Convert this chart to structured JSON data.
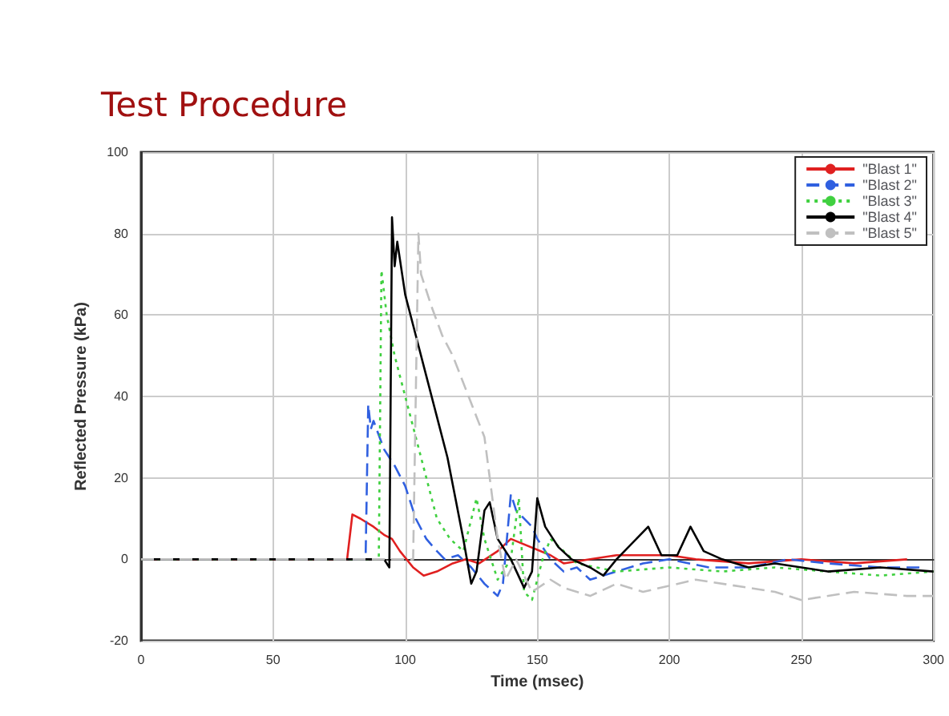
{
  "chart_data": {
    "type": "line",
    "title": "Test Procedure",
    "xlabel": "Time (msec)",
    "ylabel": "Reflected Pressure (kPa)",
    "xlim": [
      0,
      300
    ],
    "xticks": [
      0,
      50,
      100,
      150,
      200,
      250,
      300
    ],
    "ylim": [
      -20,
      100
    ],
    "yticks": [
      -20,
      0,
      20,
      40,
      60,
      80,
      100
    ],
    "grid": true,
    "legend": "top right",
    "marker": "none",
    "series": [
      {
        "name": "\"Blast 1\"",
        "color": "#e02020",
        "line_style": "solid",
        "x": [
          0,
          78,
          80,
          83,
          88,
          92,
          95,
          98,
          103,
          107,
          112,
          118,
          123,
          128,
          135,
          140,
          155,
          160,
          170,
          180,
          200,
          210,
          230,
          250,
          270,
          290
        ],
        "values": [
          0,
          0,
          11,
          10,
          8,
          6,
          5,
          2,
          -2,
          -4,
          -3,
          -1,
          0,
          -1,
          2,
          5,
          1,
          -1,
          0,
          1,
          1,
          0,
          -1,
          0,
          -1,
          0
        ]
      },
      {
        "name": "\"Blast 2\"",
        "color": "#3060e0",
        "line_style": "dashed",
        "x": [
          0,
          85,
          86,
          87,
          88,
          92,
          96,
          100,
          104,
          108,
          112,
          115,
          120,
          125,
          130,
          135,
          137,
          140,
          142,
          148,
          150,
          155,
          160,
          165,
          170,
          180,
          190,
          200,
          215,
          230,
          245,
          260,
          280,
          295
        ],
        "values": [
          0,
          0,
          38,
          32,
          34,
          27,
          23,
          18,
          10,
          5,
          2,
          0,
          1,
          -2,
          -6,
          -9,
          -6,
          16,
          12,
          8,
          5,
          0,
          -3,
          -2,
          -5,
          -3,
          -1,
          0,
          -2,
          -2,
          0,
          -1,
          -2,
          -2
        ]
      },
      {
        "name": "\"Blast 3\"",
        "color": "#40d040",
        "line_style": "dotted",
        "x": [
          0,
          90,
          91,
          93,
          96,
          98,
          102,
          106,
          112,
          117,
          122,
          127,
          130,
          135,
          140,
          143,
          145,
          148,
          152,
          155,
          165,
          180,
          200,
          220,
          240,
          260,
          280,
          300
        ],
        "values": [
          0,
          0,
          71,
          60,
          50,
          45,
          35,
          25,
          10,
          5,
          2,
          15,
          5,
          -5,
          0,
          15,
          -8,
          -10,
          0,
          5,
          -1,
          -3,
          -2,
          -3,
          -2,
          -3,
          -4,
          -3
        ]
      },
      {
        "name": "\"Blast 4\"",
        "color": "#000000",
        "line_style": "solid",
        "x": [
          0,
          92,
          94,
          95,
          96,
          97,
          100,
          104,
          108,
          112,
          116,
          119,
          122,
          125,
          127,
          130,
          132,
          135,
          140,
          145,
          148,
          150,
          153,
          158,
          163,
          170,
          175,
          180,
          192,
          197,
          203,
          208,
          213,
          220,
          230,
          240,
          260,
          280,
          300
        ],
        "values": [
          0,
          0,
          -2,
          84,
          72,
          78,
          65,
          55,
          45,
          35,
          25,
          15,
          5,
          -6,
          -3,
          12,
          14,
          5,
          0,
          -7,
          -3,
          15,
          8,
          3,
          0,
          -2,
          -4,
          0,
          8,
          1,
          1,
          8,
          2,
          0,
          -2,
          -1,
          -3,
          -2,
          -3
        ]
      },
      {
        "name": "\"Blast 5\"",
        "color": "#c0c0c0",
        "line_style": "dashed",
        "x": [
          0,
          103,
          105,
          106,
          110,
          114,
          118,
          121,
          124,
          127,
          130,
          133,
          135,
          138,
          142,
          148,
          155,
          160,
          170,
          180,
          190,
          210,
          230,
          240,
          250,
          270,
          290,
          300
        ],
        "values": [
          0,
          0,
          80,
          70,
          62,
          55,
          50,
          45,
          40,
          35,
          30,
          15,
          5,
          -5,
          0,
          -8,
          -5,
          -7,
          -9,
          -6,
          -8,
          -5,
          -7,
          -8,
          -10,
          -8,
          -9,
          -9
        ]
      }
    ]
  }
}
